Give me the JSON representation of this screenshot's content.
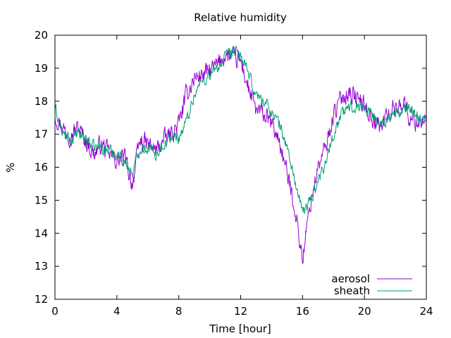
{
  "chart_data": {
    "type": "line",
    "title": "Relative humidity",
    "xlabel": "Time [hour]",
    "ylabel": "%",
    "xlim": [
      0,
      24
    ],
    "ylim": [
      12,
      20
    ],
    "xticks": [
      0,
      4,
      8,
      12,
      16,
      20,
      24
    ],
    "xtick_labels": [
      "0",
      "4",
      "8",
      "12",
      "16",
      "20",
      "24"
    ],
    "yticks": [
      12,
      13,
      14,
      15,
      16,
      17,
      18,
      19,
      20
    ],
    "ytick_labels": [
      "12",
      "13",
      "14",
      "15",
      "16",
      "17",
      "18",
      "19",
      "20"
    ],
    "grid": false,
    "legend_position": "bottom-right",
    "series": [
      {
        "name": "aerosol",
        "color": "#9400d3",
        "noise": 0.45,
        "x": [
          0,
          0.5,
          1,
          1.5,
          2,
          2.5,
          3,
          3.5,
          4,
          4.5,
          5,
          5.5,
          6,
          6.5,
          7,
          7.5,
          8,
          8.5,
          9,
          9.5,
          10,
          10.5,
          11,
          11.5,
          12,
          12.5,
          13,
          13.5,
          14,
          14.5,
          15,
          15.5,
          16,
          16.5,
          17,
          17.5,
          18,
          18.5,
          19,
          19.5,
          20,
          20.5,
          21,
          21.5,
          22,
          22.5,
          23,
          23.5,
          24
        ],
        "y": [
          17.6,
          17.2,
          17.0,
          17.2,
          16.8,
          16.4,
          16.7,
          16.4,
          16.2,
          16.3,
          15.5,
          16.8,
          16.7,
          16.5,
          16.8,
          17.0,
          17.3,
          18.2,
          18.7,
          18.8,
          18.9,
          19.1,
          19.4,
          19.3,
          19.2,
          18.4,
          17.7,
          17.6,
          17.3,
          16.8,
          15.8,
          14.8,
          13.2,
          14.9,
          16.0,
          16.6,
          17.6,
          18.1,
          18.3,
          18.1,
          17.9,
          17.5,
          17.2,
          17.6,
          17.8,
          18.0,
          17.4,
          17.4,
          17.5
        ]
      },
      {
        "name": "sheath",
        "color": "#009e73",
        "noise": 0.3,
        "x": [
          0,
          0.5,
          1,
          1.5,
          2,
          2.5,
          3,
          3.5,
          4,
          4.5,
          5,
          5.5,
          6,
          6.5,
          7,
          7.5,
          8,
          8.5,
          9,
          9.5,
          10,
          10.5,
          11,
          11.5,
          12,
          12.5,
          13,
          13.5,
          14,
          14.5,
          15,
          15.5,
          16,
          16.5,
          17,
          17.5,
          18,
          18.5,
          19,
          19.5,
          20,
          20.5,
          21,
          21.5,
          22,
          22.5,
          23,
          23.5,
          24
        ],
        "y": [
          17.8,
          17.0,
          16.8,
          17.0,
          16.9,
          16.6,
          16.6,
          16.5,
          16.4,
          16.2,
          15.8,
          16.6,
          16.6,
          16.4,
          16.7,
          16.9,
          16.9,
          17.4,
          18.2,
          18.6,
          18.8,
          19.0,
          19.3,
          19.5,
          19.4,
          18.8,
          18.2,
          18.0,
          17.7,
          17.3,
          16.6,
          15.6,
          14.6,
          15.0,
          15.6,
          16.2,
          17.0,
          17.6,
          17.8,
          17.9,
          17.8,
          17.6,
          17.3,
          17.5,
          17.6,
          17.7,
          17.8,
          17.5,
          17.5
        ]
      }
    ]
  }
}
